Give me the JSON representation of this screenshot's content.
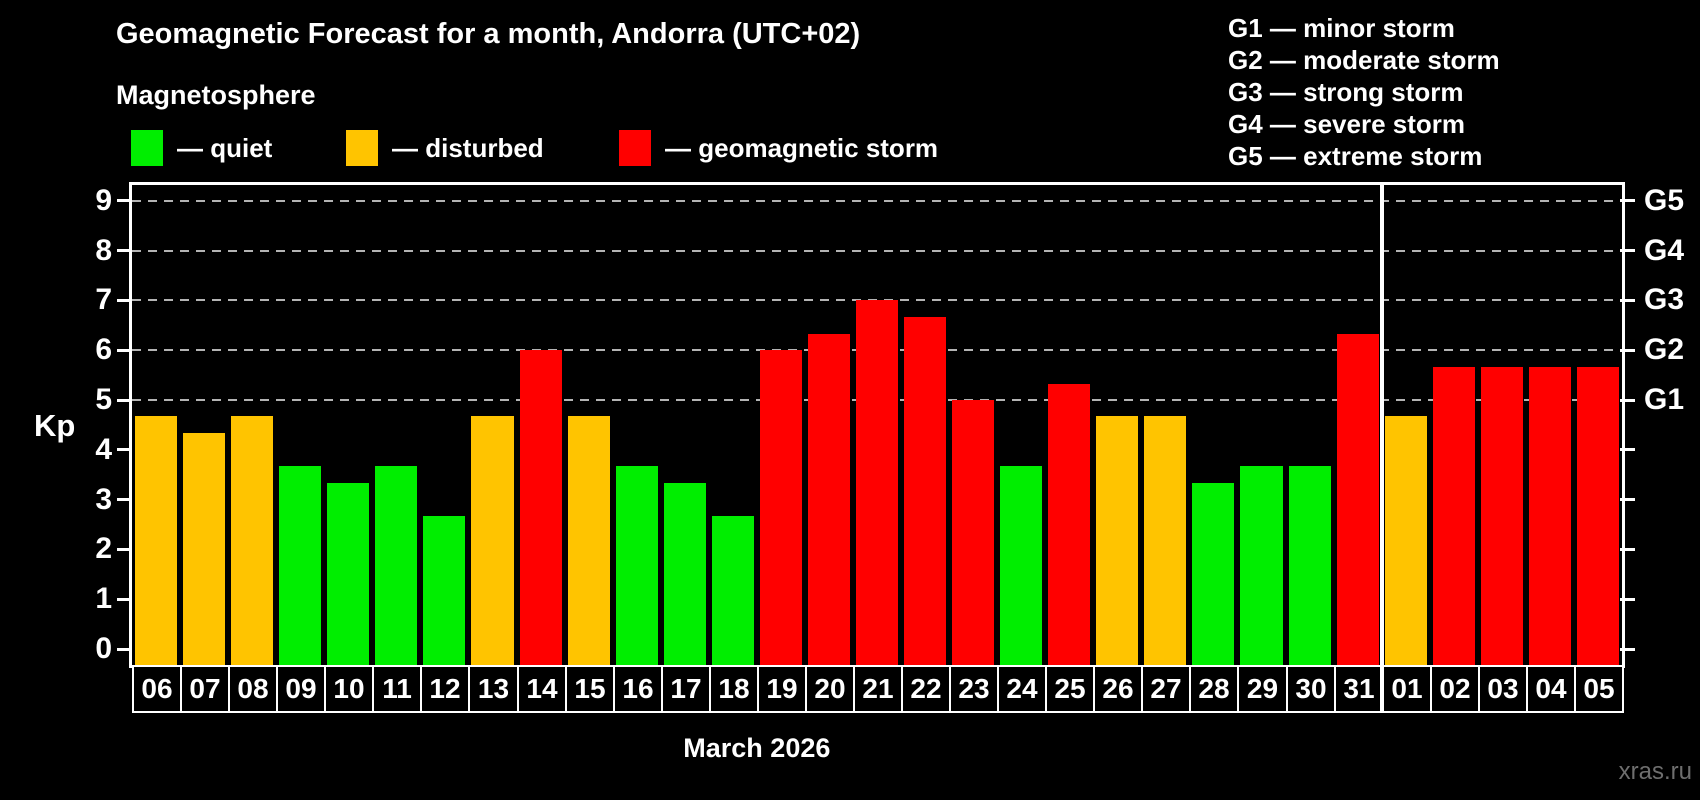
{
  "title": "Geomagnetic Forecast for a month, Andorra (UTC+02)",
  "subtitle": "Magnetosphere",
  "legend": {
    "quiet": {
      "label": "— quiet",
      "color": "#00ee00"
    },
    "disturbed": {
      "label": "— disturbed",
      "color": "#ffc400"
    },
    "storm": {
      "label": "— geomagnetic storm",
      "color": "#ff0000"
    }
  },
  "g_scale_legend": [
    "G1 — minor storm",
    "G2 — moderate storm",
    "G3 — strong storm",
    "G4 — severe storm",
    "G5 — extreme storm"
  ],
  "watermark": "xras.ru",
  "chart_data": {
    "type": "bar",
    "title": "Geomagnetic Forecast for a month, Andorra (UTC+02)",
    "xlabel": "March 2026",
    "ylabel": "Kp",
    "ylim": [
      -0.35,
      9.4
    ],
    "yticks": [
      0,
      1,
      2,
      3,
      4,
      5,
      6,
      7,
      8,
      9
    ],
    "gridlines_at": [
      5,
      6,
      7,
      8,
      9
    ],
    "grid": "dashed, horizontal, only at G-storm levels 5-9",
    "legend_position": "top-left (status colors) and top-right (G scale)",
    "right_axis_labels": {
      "5": "G1",
      "6": "G2",
      "7": "G3",
      "8": "G4",
      "9": "G5"
    },
    "categories": [
      "06",
      "07",
      "08",
      "09",
      "10",
      "11",
      "12",
      "13",
      "14",
      "15",
      "16",
      "17",
      "18",
      "19",
      "20",
      "21",
      "22",
      "23",
      "24",
      "25",
      "26",
      "27",
      "28",
      "29",
      "30",
      "31",
      "01",
      "02",
      "03",
      "04",
      "05"
    ],
    "values": [
      4.67,
      4.33,
      4.67,
      3.67,
      3.33,
      3.67,
      2.67,
      4.67,
      6,
      4.67,
      3.67,
      3.33,
      2.67,
      6,
      6.33,
      7,
      6.67,
      5,
      3.67,
      5.33,
      4.67,
      4.67,
      3.33,
      3.67,
      3.67,
      6.33,
      4.67,
      5.67,
      5.67,
      5.67,
      5.67
    ],
    "statuses": [
      "disturbed",
      "disturbed",
      "disturbed",
      "quiet",
      "quiet",
      "quiet",
      "quiet",
      "disturbed",
      "storm",
      "disturbed",
      "quiet",
      "quiet",
      "quiet",
      "storm",
      "storm",
      "storm",
      "storm",
      "storm",
      "quiet",
      "storm",
      "disturbed",
      "disturbed",
      "quiet",
      "quiet",
      "quiet",
      "storm",
      "disturbed",
      "storm",
      "storm",
      "storm",
      "storm"
    ],
    "month_separator_index": 26
  }
}
